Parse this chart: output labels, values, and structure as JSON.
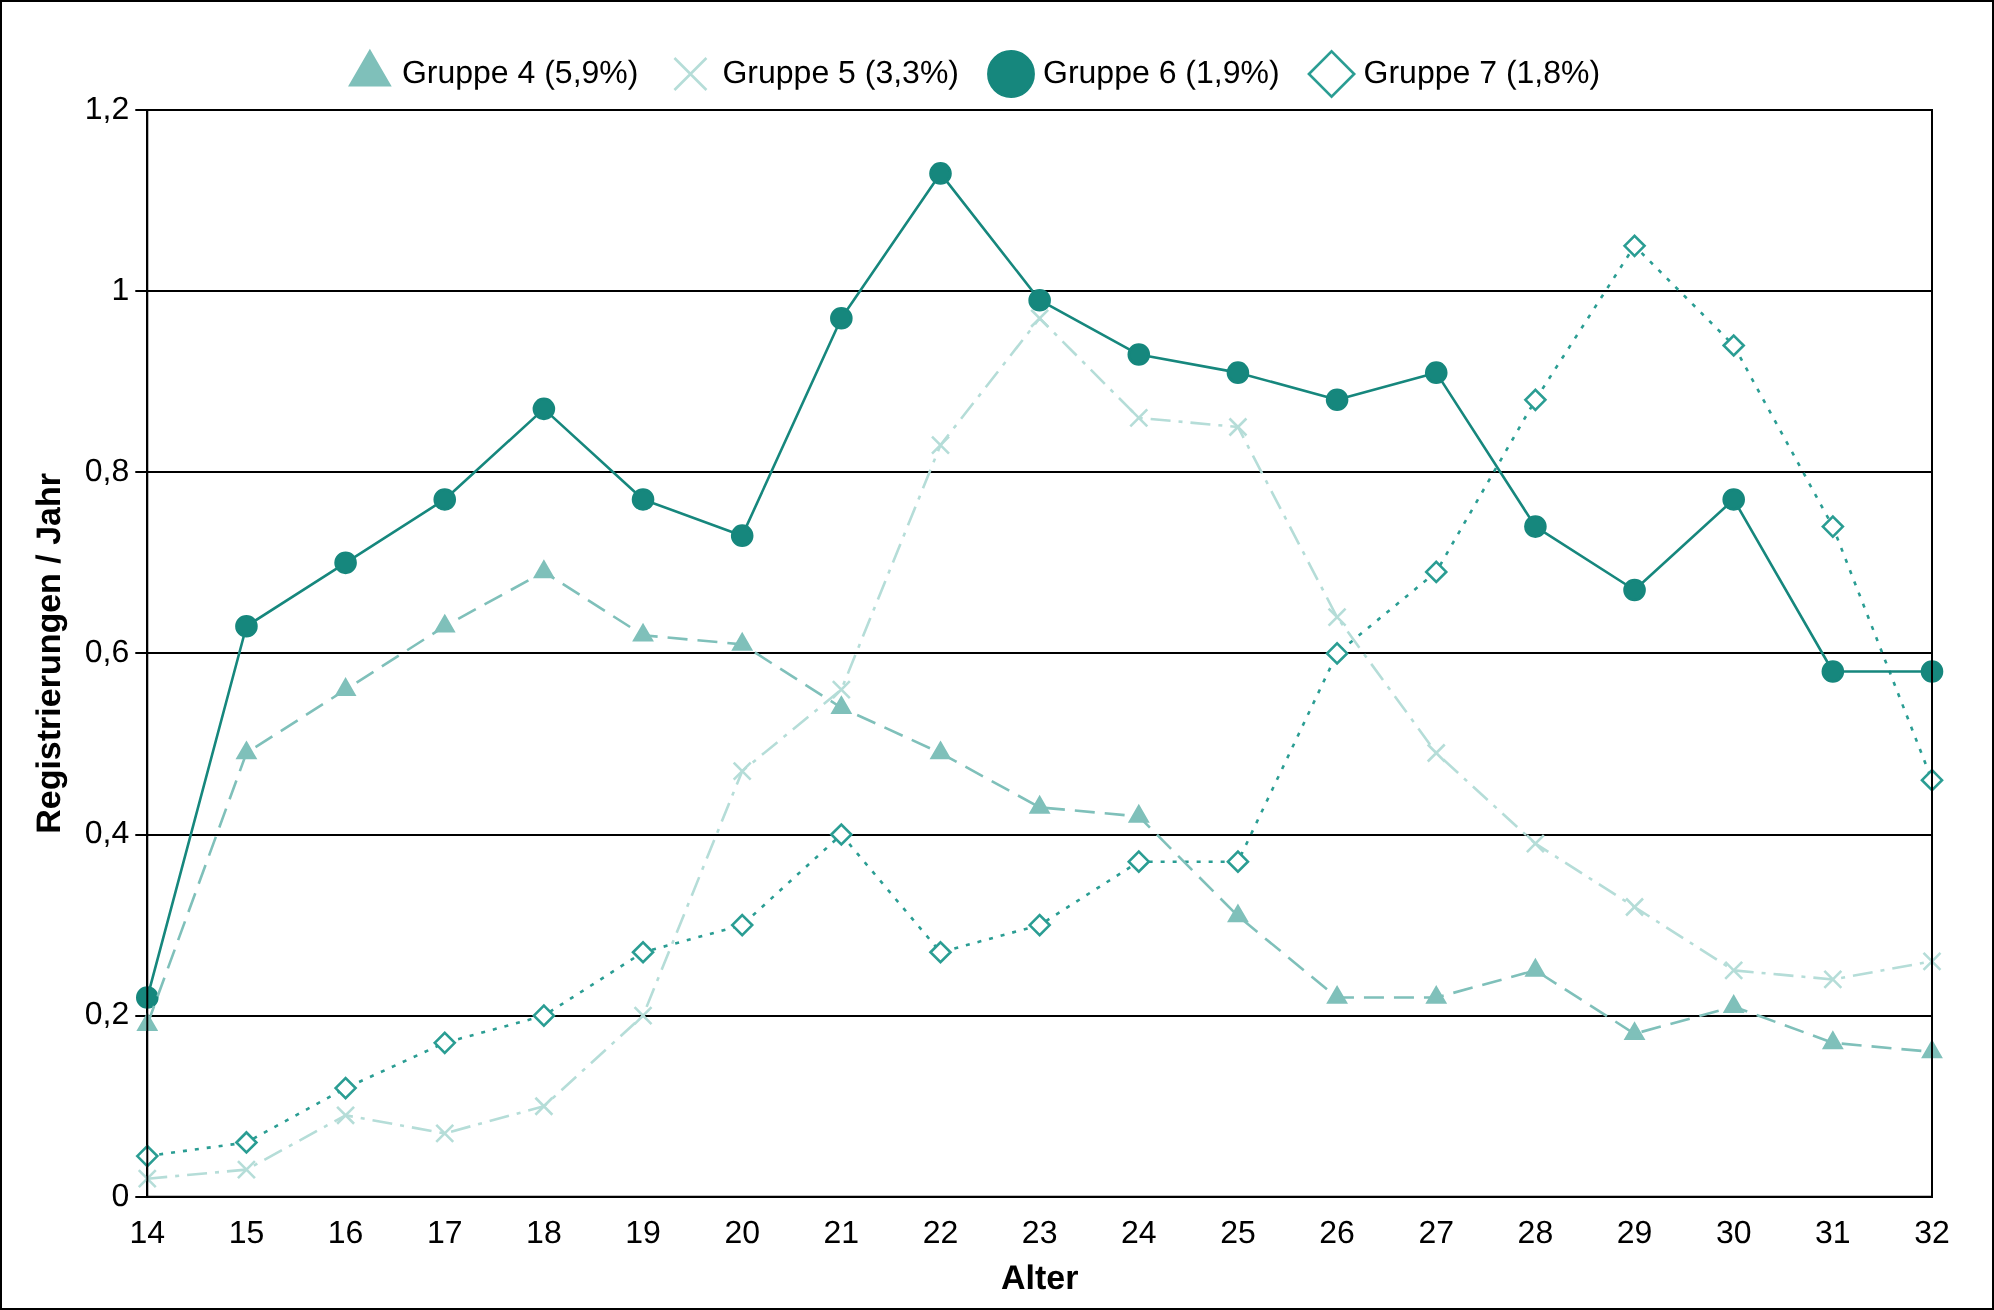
{
  "chart_data": {
    "type": "line",
    "xlabel": "Alter",
    "ylabel": "Registrierungen / Jahr",
    "categories": [
      "14",
      "15",
      "16",
      "17",
      "18",
      "19",
      "20",
      "21",
      "22",
      "23",
      "24",
      "25",
      "26",
      "27",
      "28",
      "29",
      "30",
      "31",
      "32"
    ],
    "ylim": [
      0,
      1.2
    ],
    "yticks": [
      0,
      {
        "value": 0.2,
        "label": "0,2"
      },
      {
        "value": 0.4,
        "label": "0,4"
      },
      {
        "value": 0.6,
        "label": "0,6"
      },
      {
        "value": 0.8,
        "label": "0,8"
      },
      1,
      {
        "value": 1.2,
        "label": "1,2"
      }
    ],
    "grid": "y",
    "legend": "top",
    "series": [
      {
        "name": "Gruppe 4 (5,9%)",
        "color": "#7fc0ba",
        "marker": "triangle",
        "line_style": "dashed",
        "values": [
          0.19,
          0.49,
          0.56,
          0.63,
          0.69,
          0.62,
          0.61,
          0.54,
          0.49,
          0.43,
          0.42,
          0.31,
          0.22,
          0.22,
          0.25,
          0.18,
          0.21,
          0.17,
          0.16
        ]
      },
      {
        "name": "Gruppe 5 (3,3%)",
        "color": "#b5ddd8",
        "marker": "cross",
        "line_style": "dashdot",
        "values": [
          0.02,
          0.03,
          0.09,
          0.07,
          0.1,
          0.2,
          0.47,
          0.56,
          0.83,
          0.97,
          0.86,
          0.85,
          0.64,
          0.49,
          0.39,
          0.32,
          0.25,
          0.24,
          0.26
        ]
      },
      {
        "name": "Gruppe 6 (1,9%)",
        "color": "#16877d",
        "marker": "circle",
        "line_style": "solid",
        "values": [
          0.22,
          0.63,
          0.7,
          0.77,
          0.87,
          0.77,
          0.73,
          0.97,
          1.13,
          0.99,
          0.93,
          0.91,
          0.88,
          0.91,
          0.74,
          0.67,
          0.77,
          0.58,
          0.58
        ]
      },
      {
        "name": "Gruppe 7 (1,8%)",
        "color": "#2a9d93",
        "marker": "diamond",
        "line_style": "dotted",
        "values": [
          0.045,
          0.06,
          0.12,
          0.17,
          0.2,
          0.27,
          0.3,
          0.4,
          0.27,
          0.3,
          0.37,
          0.37,
          0.6,
          0.69,
          0.88,
          1.05,
          0.94,
          0.74,
          0.46
        ]
      }
    ]
  }
}
